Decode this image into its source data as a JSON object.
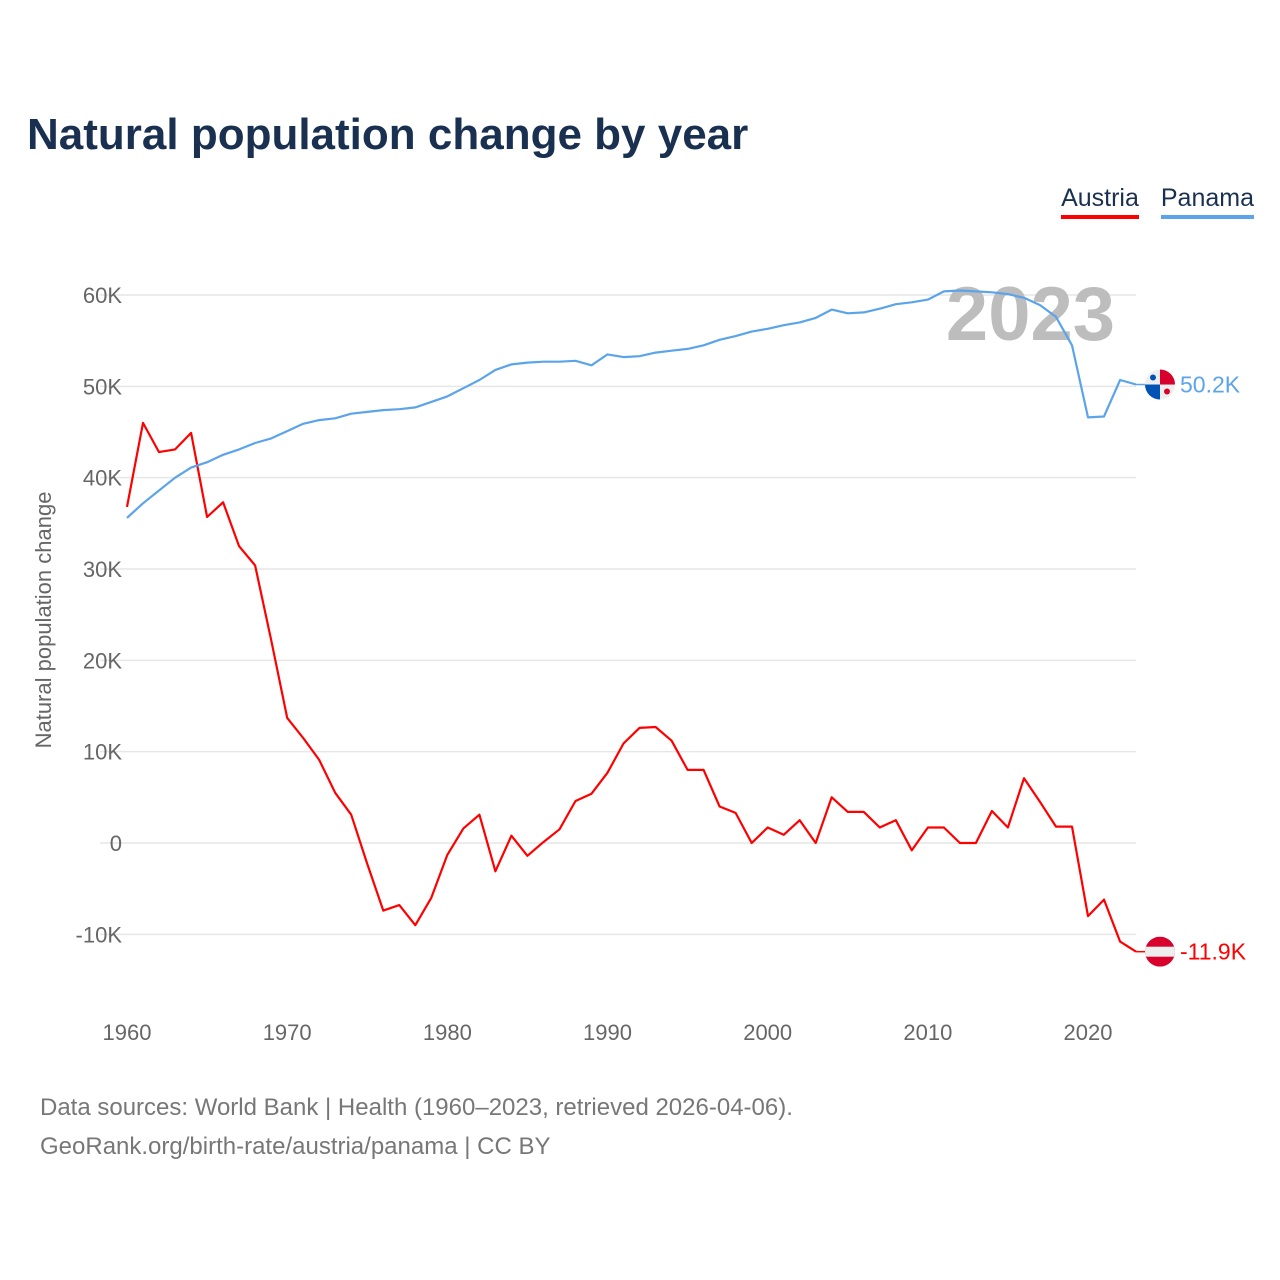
{
  "title": "Natural population change by year",
  "legend": [
    {
      "name": "Austria",
      "color": "#ff0000"
    },
    {
      "name": "Panama",
      "color": "#5ba4ea"
    }
  ],
  "footer": {
    "line1": "Data sources: World Bank | Health (1960–2023, retrieved 2026-04-06).",
    "line2": "GeoRank.org/birth-rate/austria/panama | CC BY"
  },
  "chart_data": {
    "type": "line",
    "title": "Natural population change by year",
    "ylabel": "Natural population change",
    "xlabel": "",
    "year_watermark": "2023",
    "xlim": [
      1960,
      2023
    ],
    "ylim": [
      -15000,
      65000
    ],
    "x_ticks": [
      "1960",
      "1970",
      "1980",
      "1990",
      "2000",
      "2010",
      "2020"
    ],
    "y_ticks": [
      {
        "value": 60000,
        "label": "60K"
      },
      {
        "value": 50000,
        "label": "50K"
      },
      {
        "value": 40000,
        "label": "40K"
      },
      {
        "value": 30000,
        "label": "30K"
      },
      {
        "value": 20000,
        "label": "20K"
      },
      {
        "value": 10000,
        "label": "10K"
      },
      {
        "value": 0,
        "label": "0"
      },
      {
        "value": -10000,
        "label": "-10K"
      }
    ],
    "grid": true,
    "legend_position": "top-right",
    "x_start": 1960,
    "series": [
      {
        "name": "Austria",
        "color": "#ff0000",
        "end_label": "-11.9K",
        "values": [
          36.8,
          46.0,
          42.8,
          43.1,
          44.9,
          35.7,
          37.3,
          32.5,
          30.4,
          22.2,
          13.7,
          11.5,
          9.1,
          5.5,
          3.1,
          -2.3,
          -7.4,
          -6.8,
          -9.0,
          -6.0,
          -1.3,
          1.6,
          3.1,
          -3.1,
          0.8,
          -1.4,
          0.1,
          1.5,
          4.6,
          5.4,
          7.7,
          10.9,
          12.6,
          12.7,
          11.2,
          8.0,
          8.0,
          4.0,
          3.3,
          0.0,
          1.7,
          0.9,
          2.5,
          0.0,
          5.0,
          3.4,
          3.4,
          1.7,
          2.5,
          -0.8,
          1.7,
          1.7,
          0.0,
          0.0,
          3.5,
          1.7,
          7.1,
          4.5,
          1.8,
          1.8,
          -8.0,
          -6.2,
          -10.8,
          -11.9
        ]
      },
      {
        "name": "Panama",
        "color": "#5ba4ea",
        "end_label": "50.2K",
        "values": [
          35.6,
          37.2,
          38.6,
          40.0,
          41.1,
          41.7,
          42.5,
          43.1,
          43.8,
          44.3,
          45.1,
          45.9,
          46.3,
          46.5,
          47.0,
          47.2,
          47.4,
          47.5,
          47.7,
          48.3,
          48.9,
          49.8,
          50.7,
          51.8,
          52.4,
          52.6,
          52.7,
          52.7,
          52.8,
          52.3,
          53.5,
          53.2,
          53.3,
          53.7,
          53.9,
          54.1,
          54.5,
          55.1,
          55.5,
          56.0,
          56.3,
          56.7,
          57.0,
          57.5,
          58.4,
          58.0,
          58.1,
          58.5,
          59.0,
          59.2,
          59.5,
          60.4,
          60.5,
          60.4,
          60.3,
          60.1,
          59.7,
          58.9,
          57.6,
          54.5,
          46.6,
          46.7,
          50.7,
          50.2
        ]
      }
    ],
    "value_unit": "thousands"
  }
}
